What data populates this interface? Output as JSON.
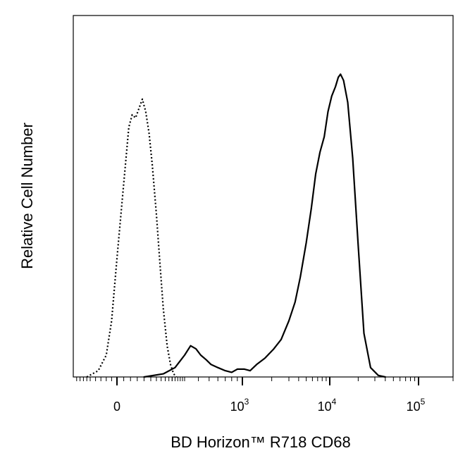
{
  "chart_data": {
    "type": "line",
    "title": "",
    "xlabel": "BD Horizon™ R718 CD68",
    "ylabel": "Relative Cell Number",
    "x_scale": "biexponential",
    "xlim": [
      -200,
      200000
    ],
    "ylim": [
      0,
      1
    ],
    "grid": false,
    "legend": "none",
    "x_ticks": [
      {
        "value": 0,
        "label": "0",
        "exponent": ""
      },
      {
        "value": 1000,
        "label": "10",
        "exponent": "3"
      },
      {
        "value": 10000,
        "label": "10",
        "exponent": "4"
      },
      {
        "value": 100000,
        "label": "10",
        "exponent": "5"
      }
    ],
    "series": [
      {
        "style": "dotted",
        "color": "#000000",
        "x": [
          -120,
          -70,
          -40,
          -20,
          0,
          20,
          35,
          45,
          55,
          65,
          75,
          85,
          95,
          105,
          120,
          135,
          150,
          170,
          190,
          210,
          230
        ],
        "y": [
          0.0,
          0.02,
          0.07,
          0.18,
          0.38,
          0.62,
          0.8,
          0.84,
          0.83,
          0.86,
          0.89,
          0.85,
          0.78,
          0.68,
          0.52,
          0.36,
          0.22,
          0.1,
          0.04,
          0.01,
          0.0
        ]
      },
      {
        "style": "solid",
        "color": "#000000",
        "x": [
          80,
          150,
          220,
          300,
          340,
          380,
          420,
          470,
          520,
          600,
          700,
          800,
          900,
          1050,
          1200,
          1400,
          1700,
          2100,
          2500,
          3000,
          3600,
          4200,
          5000,
          5800,
          6600,
          7500,
          8500,
          9500,
          10500,
          11500,
          12300,
          13000,
          14000,
          15500,
          17500,
          20000,
          23000,
          27000,
          33000,
          40000
        ],
        "y": [
          0.0,
          0.01,
          0.03,
          0.07,
          0.1,
          0.09,
          0.07,
          0.055,
          0.04,
          0.03,
          0.02,
          0.015,
          0.025,
          0.025,
          0.02,
          0.04,
          0.06,
          0.09,
          0.12,
          0.18,
          0.24,
          0.32,
          0.43,
          0.54,
          0.65,
          0.72,
          0.77,
          0.85,
          0.9,
          0.93,
          0.96,
          0.97,
          0.95,
          0.88,
          0.7,
          0.42,
          0.14,
          0.03,
          0.005,
          0.0
        ]
      }
    ]
  }
}
